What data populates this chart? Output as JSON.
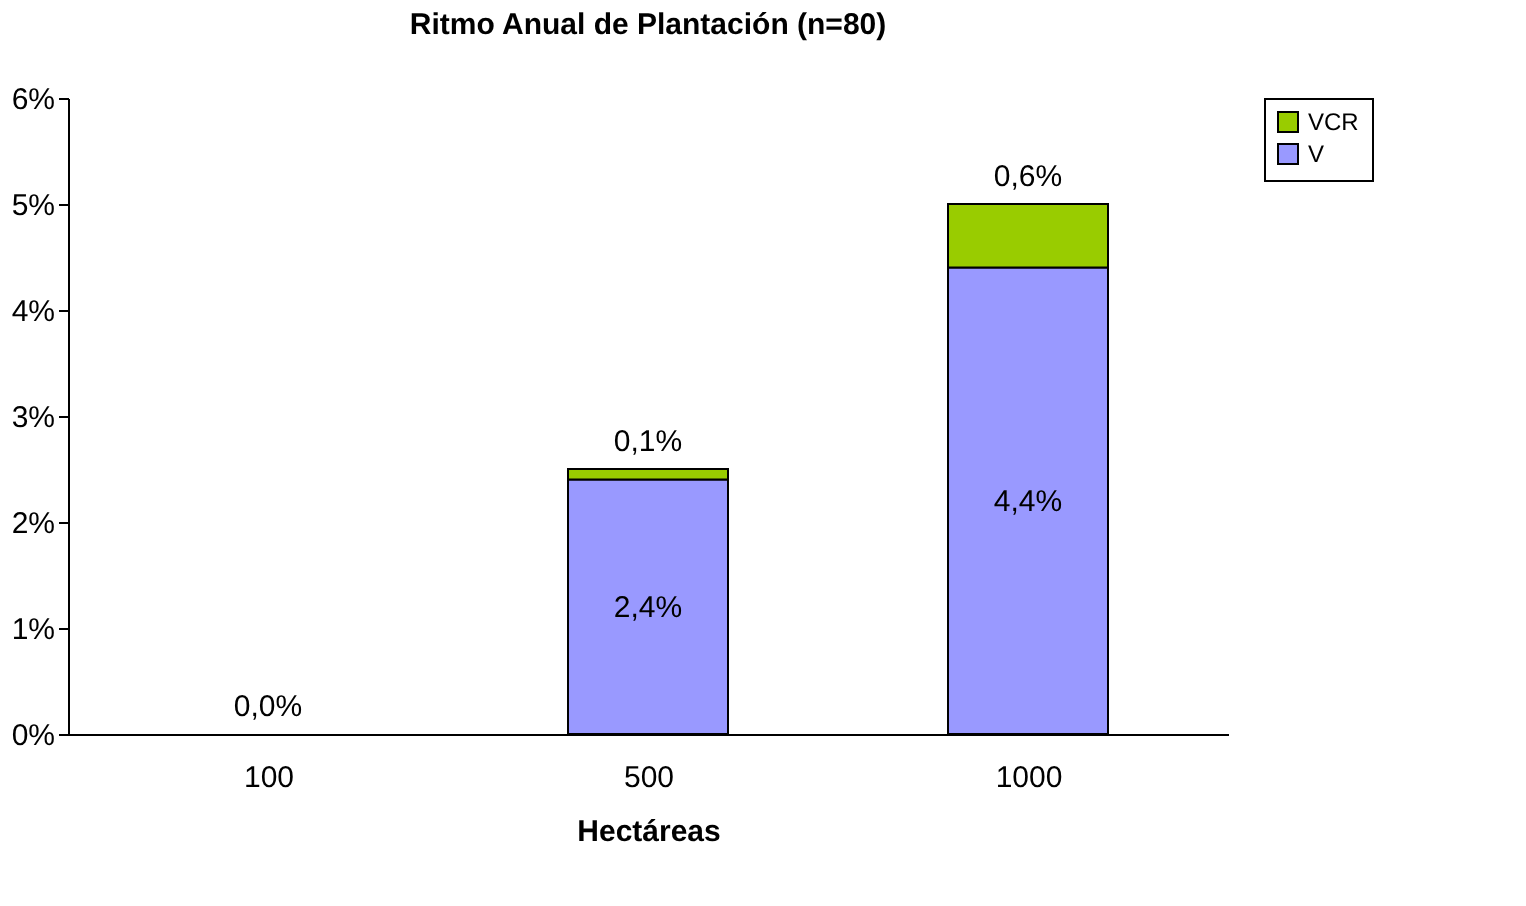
{
  "chart_data": {
    "type": "bar",
    "stacked": true,
    "title": "Ritmo Anual de Plantación        (n=80)",
    "xlabel": "Hectáreas",
    "categories": [
      "100",
      "500",
      "1000"
    ],
    "series": [
      {
        "name": "V",
        "color": "#9999ff",
        "values": [
          0,
          2.4,
          4.4
        ],
        "value_labels": [
          null,
          "2,4%",
          "4,4%"
        ]
      },
      {
        "name": "VCR",
        "color": "#99cc00",
        "values": [
          0,
          0.1,
          0.6
        ],
        "value_labels": [
          "0,0%",
          "0,1%",
          "0,6%"
        ]
      }
    ],
    "ylim": [
      0,
      6
    ],
    "yticks": [
      {
        "value": 0,
        "label": "0%"
      },
      {
        "value": 1,
        "label": "1%"
      },
      {
        "value": 2,
        "label": "2%"
      },
      {
        "value": 3,
        "label": "3%"
      },
      {
        "value": 4,
        "label": "4%"
      },
      {
        "value": 5,
        "label": "5%"
      },
      {
        "value": 6,
        "label": "6%"
      }
    ],
    "grid": false,
    "legend": "right"
  }
}
